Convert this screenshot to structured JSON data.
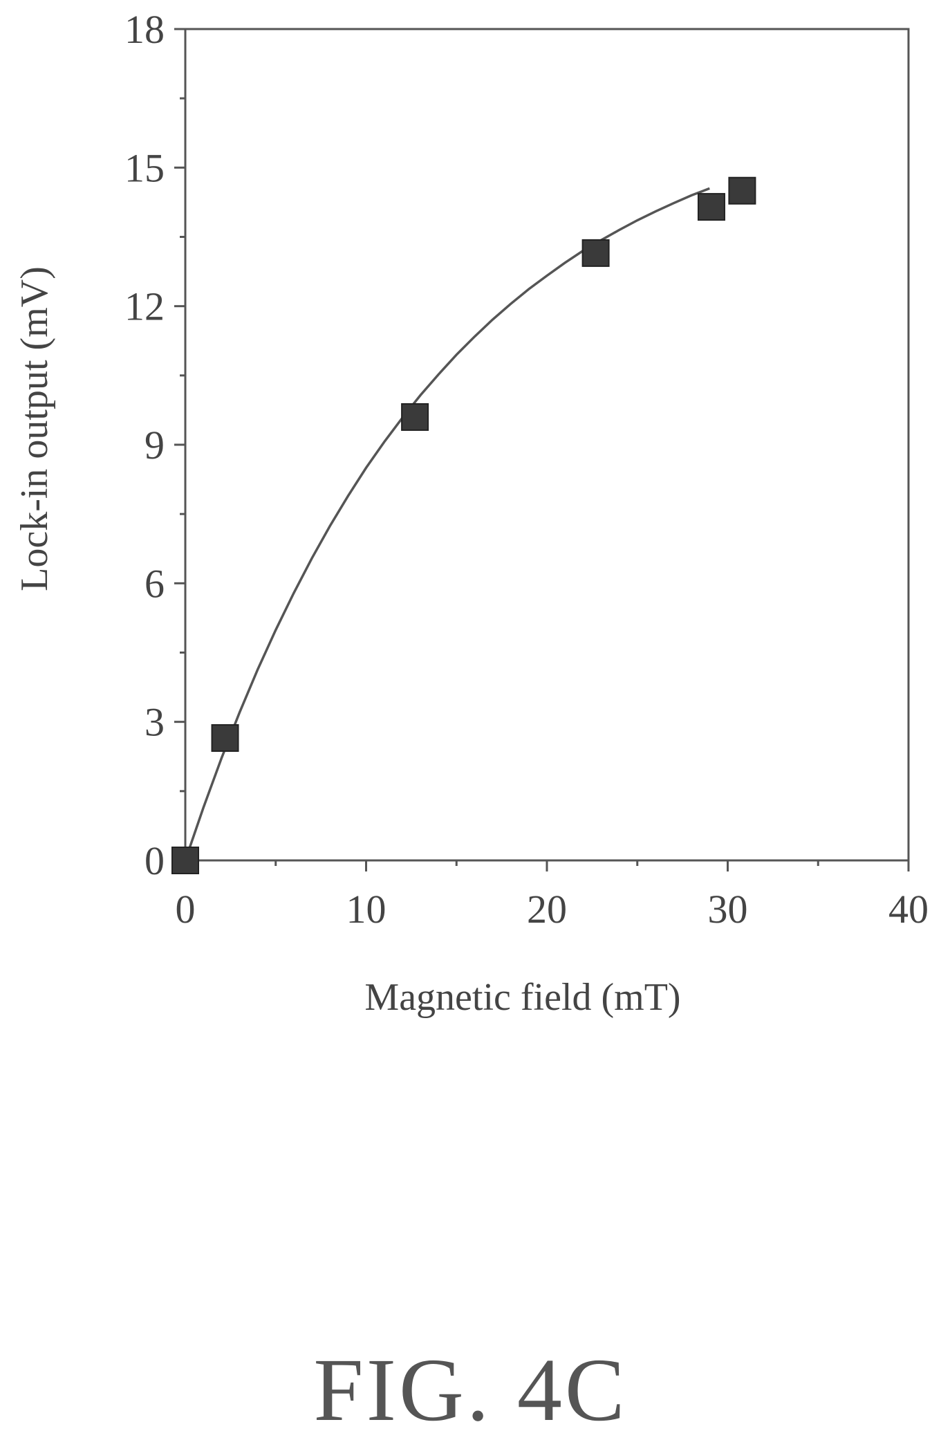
{
  "chart_data": {
    "type": "scatter",
    "title": "",
    "xlabel": "Magnetic field (mT)",
    "ylabel": "Lock-in output (mV)",
    "xlim": [
      0,
      40
    ],
    "ylim": [
      0,
      18
    ],
    "x_ticks": [
      0,
      10,
      20,
      30,
      40
    ],
    "y_ticks": [
      0,
      3,
      6,
      9,
      12,
      15,
      18
    ],
    "x_minor_ticks": [
      5,
      15,
      25,
      35
    ],
    "y_minor_ticks": [
      1.5,
      4.5,
      7.5,
      10.5,
      13.5,
      16.5
    ],
    "grid": false,
    "series": [
      {
        "marker": "square",
        "color": "#3a3a3a",
        "points": [
          {
            "x": 0,
            "y": 0
          },
          {
            "x": 2.2,
            "y": 2.65
          },
          {
            "x": 12.7,
            "y": 9.6
          },
          {
            "x": 22.7,
            "y": 13.15
          },
          {
            "x": 29.1,
            "y": 14.15
          },
          {
            "x": 30.8,
            "y": 14.5
          }
        ]
      }
    ],
    "fit_curve": {
      "color": "#555555",
      "x": [
        0,
        1,
        2,
        3,
        4,
        5,
        6,
        7,
        8,
        9,
        10,
        11,
        12,
        13,
        14,
        15,
        16,
        17,
        18,
        19,
        20,
        21,
        22,
        23,
        24,
        25,
        26,
        27,
        28,
        29
      ],
      "y": [
        0,
        1.14,
        2.21,
        3.2,
        4.13,
        4.99,
        5.79,
        6.54,
        7.24,
        7.89,
        8.5,
        9.06,
        9.58,
        10.07,
        10.52,
        10.95,
        11.34,
        11.71,
        12.05,
        12.37,
        12.66,
        12.94,
        13.2,
        13.43,
        13.65,
        13.86,
        14.05,
        14.23,
        14.4,
        14.55
      ]
    }
  },
  "caption": "FIG. 4C"
}
